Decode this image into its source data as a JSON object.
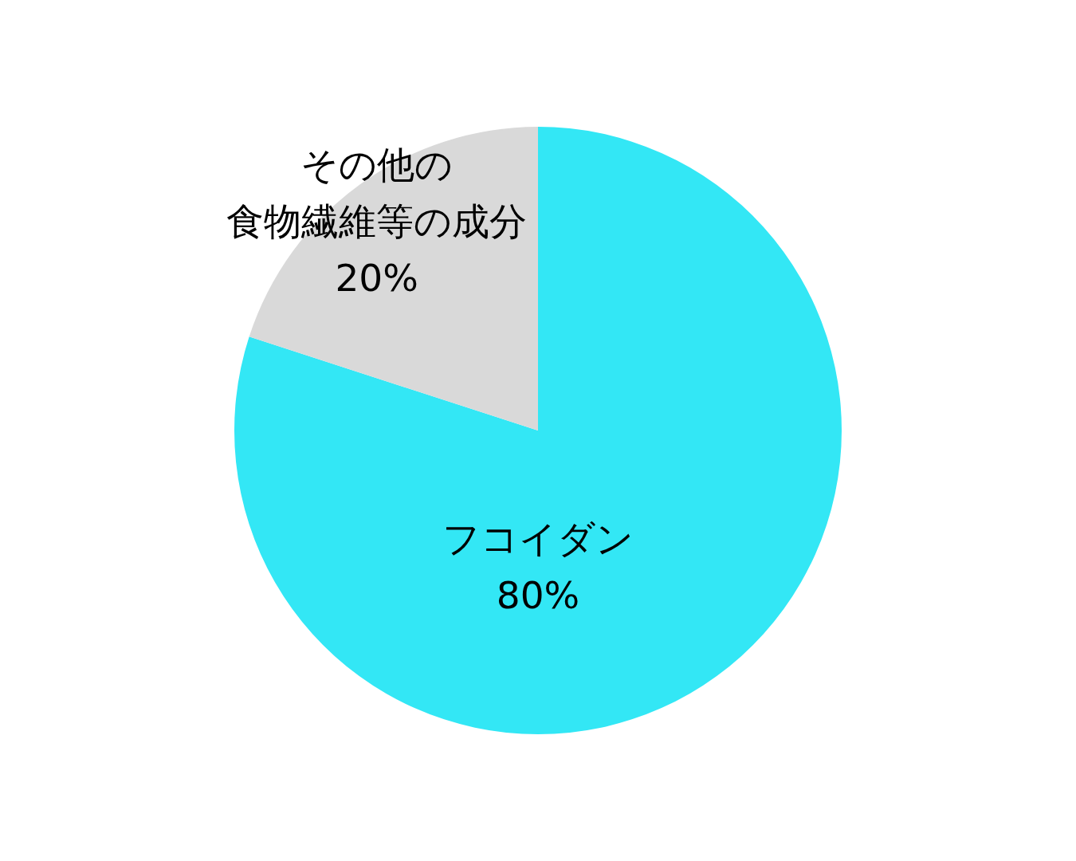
{
  "chart_data": {
    "type": "pie",
    "categories": [
      "フコイダン",
      "その他の食物繊維等の成分"
    ],
    "values": [
      80,
      20
    ],
    "colors": [
      "#33e7f5",
      "#d9d9d9"
    ],
    "value_labels": [
      "80%",
      "20%"
    ]
  }
}
